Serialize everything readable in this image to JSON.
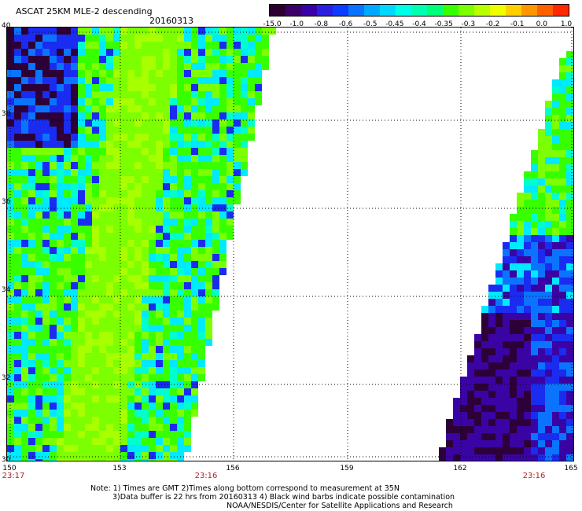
{
  "header": {
    "title": "ASCAT 25KM MLE-2 descending",
    "date": "20160313"
  },
  "colorbar": {
    "colors": [
      "#2b0030",
      "#3d006a",
      "#3a00a8",
      "#2a1ee0",
      "#0b3cff",
      "#0a74ff",
      "#00a8ff",
      "#00d8ff",
      "#00ffe8",
      "#00ffb0",
      "#00ff78",
      "#38ff00",
      "#7cff00",
      "#b8ff00",
      "#f0ff00",
      "#ffd000",
      "#ff9800",
      "#ff6000",
      "#ff2800"
    ],
    "ticks": [
      "-15.0",
      "-1.0",
      "-0.8",
      "-0.6",
      "-0.5",
      "-0.45",
      "-0.4",
      "-0.35",
      "-0.3",
      "-0.2",
      "-0.1",
      "0.0",
      "1.0"
    ]
  },
  "axes": {
    "lon_labels": [
      "150",
      "153",
      "156",
      "159",
      "162",
      "165"
    ],
    "lat_labels": [
      "40",
      "38",
      "36",
      "34",
      "32",
      "30"
    ],
    "gridline_style": "dotted"
  },
  "swath_times": [
    "23:17",
    "23:16",
    "23:16"
  ],
  "notes": [
    "Note: 1) Times are GMT 2)Times along bottom correspond to measurement at 35N",
    "3)Data buffer is 22 hrs from 20160313 4) Black wind barbs indicate possible contamination",
    "NOAA/NESDIS/Center for Satellite Applications and Research"
  ]
}
